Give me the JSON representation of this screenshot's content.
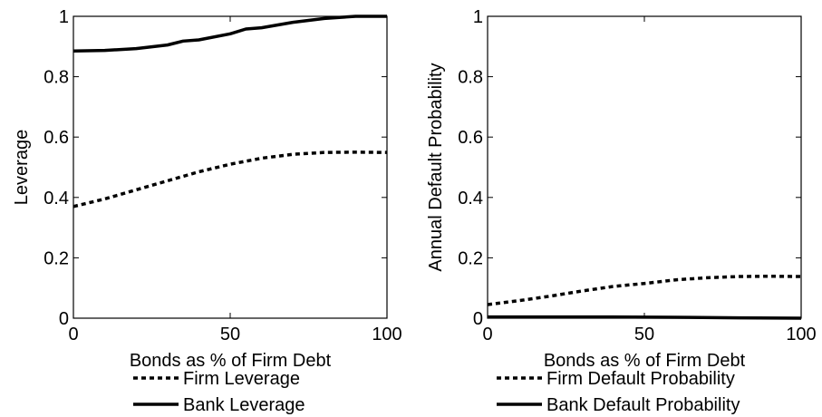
{
  "chart_data": [
    {
      "type": "line",
      "title": "",
      "xlabel": "Bonds as % of Firm Debt",
      "ylabel": "Leverage",
      "xlim": [
        0,
        100
      ],
      "ylim": [
        0,
        1
      ],
      "xticks": [
        0,
        50,
        100
      ],
      "yticks": [
        0,
        0.2,
        0.4,
        0.6,
        0.8,
        1
      ],
      "xtick_labels": [
        "0",
        "50",
        "100"
      ],
      "ytick_labels": [
        "0",
        "0.2",
        "0.4",
        "0.6",
        "0.8",
        "1"
      ],
      "grid": false,
      "legend_position": "bottom",
      "series": [
        {
          "name": "Firm Leverage",
          "style": "dotted",
          "x": [
            0,
            10,
            20,
            30,
            40,
            50,
            60,
            70,
            80,
            90,
            100
          ],
          "y": [
            0.37,
            0.395,
            0.425,
            0.455,
            0.485,
            0.51,
            0.53,
            0.543,
            0.549,
            0.55,
            0.549
          ]
        },
        {
          "name": "Bank Leverage",
          "style": "solid",
          "x": [
            0,
            10,
            20,
            30,
            35,
            40,
            50,
            55,
            60,
            70,
            80,
            90,
            100
          ],
          "y": [
            0.885,
            0.887,
            0.893,
            0.905,
            0.918,
            0.922,
            0.942,
            0.958,
            0.962,
            0.98,
            0.993,
            1.0,
            1.0
          ]
        }
      ]
    },
    {
      "type": "line",
      "title": "",
      "xlabel": "Bonds as % of Firm Debt",
      "ylabel": "Annual Default Probability",
      "xlim": [
        0,
        100
      ],
      "ylim": [
        0,
        1
      ],
      "xticks": [
        0,
        50,
        100
      ],
      "yticks": [
        0,
        0.2,
        0.4,
        0.6,
        0.8,
        1
      ],
      "xtick_labels": [
        "0",
        "50",
        "100"
      ],
      "ytick_labels": [
        "0",
        "0.2",
        "0.4",
        "0.6",
        "0.8",
        "1"
      ],
      "grid": false,
      "legend_position": "bottom",
      "series": [
        {
          "name": "Firm Default Probability",
          "style": "dotted",
          "x": [
            0,
            10,
            20,
            30,
            40,
            50,
            60,
            70,
            80,
            90,
            100
          ],
          "y": [
            0.045,
            0.058,
            0.073,
            0.09,
            0.105,
            0.115,
            0.127,
            0.134,
            0.138,
            0.139,
            0.138
          ]
        },
        {
          "name": "Bank Default Probability",
          "style": "solid",
          "x": [
            0,
            20,
            40,
            60,
            80,
            100
          ],
          "y": [
            0.004,
            0.004,
            0.004,
            0.003,
            0.001,
            0.0
          ]
        }
      ]
    }
  ]
}
